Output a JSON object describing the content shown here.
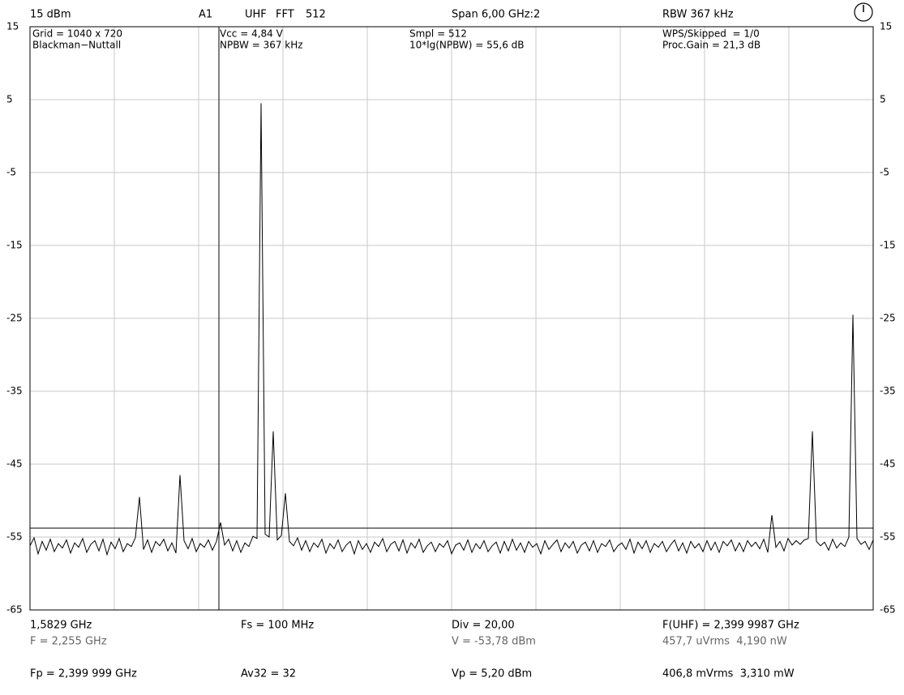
{
  "header": {
    "level": "15 dBm",
    "channel": "A1",
    "band": "UHF",
    "mode": "FFT",
    "fft_size": "512",
    "span": "Span 6,00 GHz:2",
    "rbw": "RBW 367 kHz"
  },
  "info": {
    "grid": "Grid = 1040 x 720",
    "window": "Blackman−Nuttall",
    "vcc": "Vcc = 4,84 V",
    "npbw": "NPBW = 367 kHz",
    "smpl": "Smpl = 512",
    "npbw_db": "10*lg(NPBW) = 55,6 dB",
    "wps": "WPS/Skipped  = 1/0",
    "proc_gain": "Proc.Gain = 21,3 dB"
  },
  "footer": {
    "cursor_freq": "1,5829 GHz",
    "fs": "Fs = 100 MHz",
    "div": "Div = 20,00",
    "f_uhf": "F(UHF) = 2,399 9987 GHz",
    "f": "F = 2,255 GHz",
    "v": "V = -53,78 dBm",
    "vrms": "457,7 uVrms  4,190 nW",
    "fp": "Fp = 2,399 999 GHz",
    "av": "Av32 = 32",
    "vp": "Vp = 5,20 dBm",
    "prms": "406,8 mVrms  3,310 mW"
  },
  "chart_data": {
    "type": "line",
    "color": "#000000",
    "grid": true,
    "ylim": [
      -65,
      15
    ],
    "yticks": [
      15,
      5,
      -5,
      -15,
      -25,
      -35,
      -45,
      -55,
      -65
    ],
    "reference_line": -53.78,
    "values": [
      -56.2,
      -55.1,
      -57.3,
      -55.6,
      -56.8,
      -55.3,
      -57.0,
      -55.9,
      -56.5,
      -55.4,
      -57.2,
      -55.8,
      -56.4,
      -55.2,
      -57.1,
      -56.0,
      -55.5,
      -56.9,
      -55.3,
      -57.4,
      -55.7,
      -56.6,
      -55.2,
      -57.0,
      -55.9,
      -56.3,
      -55.1,
      -49.5,
      -56.7,
      -55.4,
      -57.1,
      -55.6,
      -56.2,
      -55.3,
      -56.9,
      -55.8,
      -57.2,
      -46.5,
      -55.5,
      -56.6,
      -55.2,
      -57.0,
      -55.9,
      -56.4,
      -55.4,
      -56.8,
      -55.6,
      -53.0,
      -56.1,
      -55.3,
      -56.9,
      -55.5,
      -57.1,
      -55.8,
      -56.3,
      -54.9,
      -55.2,
      4.5,
      -54.6,
      -55.0,
      -40.5,
      -55.4,
      -54.8,
      -49.0,
      -55.6,
      -56.2,
      -55.1,
      -56.8,
      -55.5,
      -57.0,
      -55.8,
      -56.4,
      -55.3,
      -57.2,
      -55.9,
      -56.6,
      -55.4,
      -57.0,
      -56.1,
      -55.6,
      -57.3,
      -55.5,
      -56.7,
      -55.9,
      -57.1,
      -55.7,
      -56.3,
      -55.2,
      -57.0,
      -56.0,
      -55.6,
      -56.9,
      -55.4,
      -57.2,
      -55.8,
      -56.5,
      -55.3,
      -57.1,
      -56.2,
      -55.7,
      -57.0,
      -55.9,
      -56.4,
      -55.5,
      -57.3,
      -56.1,
      -55.8,
      -56.8,
      -55.4,
      -57.1,
      -55.9,
      -56.6,
      -55.5,
      -57.0,
      -56.2,
      -55.7,
      -57.2,
      -55.6,
      -56.9,
      -55.3,
      -56.8,
      -55.8,
      -57.1,
      -55.6,
      -56.4,
      -55.9,
      -57.3,
      -55.5,
      -56.7,
      -56.0,
      -55.4,
      -57.0,
      -55.8,
      -56.5,
      -55.6,
      -57.2,
      -56.1,
      -55.7,
      -56.9,
      -55.5,
      -57.1,
      -55.9,
      -56.3,
      -55.4,
      -57.0,
      -56.2,
      -55.8,
      -56.7,
      -55.3,
      -57.2,
      -55.7,
      -56.6,
      -55.5,
      -57.1,
      -55.9,
      -56.4,
      -55.6,
      -57.0,
      -56.1,
      -55.4,
      -56.9,
      -55.8,
      -57.2,
      -55.6,
      -56.5,
      -55.9,
      -57.0,
      -55.5,
      -56.8,
      -55.7,
      -57.1,
      -55.6,
      -56.2,
      -55.4,
      -56.9,
      -55.8,
      -57.0,
      -55.5,
      -56.3,
      -55.7,
      -56.6,
      -55.3,
      -57.1,
      -52.0,
      -56.4,
      -55.6,
      -56.9,
      -55.2,
      -56.1,
      -55.5,
      -56.0,
      -55.4,
      -55.2,
      -40.5,
      -55.6,
      -56.2,
      -55.7,
      -56.8,
      -55.3,
      -56.5,
      -55.8,
      -56.3,
      -55.0,
      -24.5,
      -55.2,
      -56.0,
      -55.6,
      -56.7,
      -55.4
    ]
  }
}
